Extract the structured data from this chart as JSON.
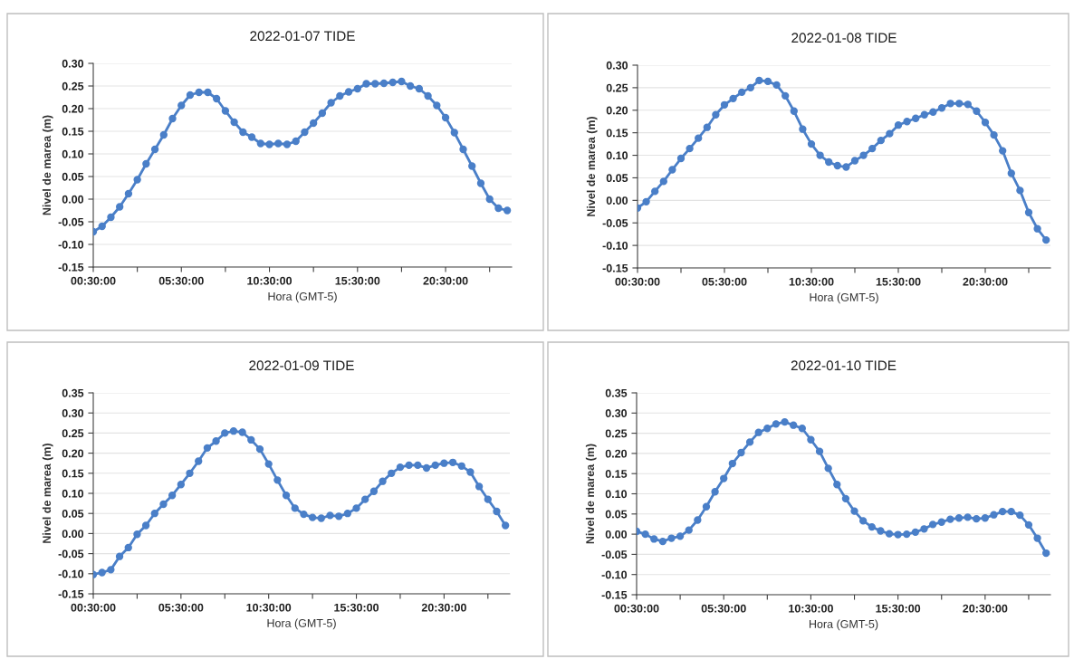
{
  "chart_data": [
    {
      "type": "line",
      "title": "2022-01-07 TIDE",
      "xlabel": "Hora (GMT-5)",
      "ylabel": "Nivel de marea (m)",
      "marker": "circle",
      "grid": "y",
      "x": [
        0.5,
        1,
        1.5,
        2,
        2.5,
        3,
        3.5,
        4,
        4.5,
        5,
        5.5,
        6,
        6.5,
        7,
        7.5,
        8,
        8.5,
        9,
        9.5,
        10,
        10.5,
        11,
        11.5,
        12,
        12.5,
        13,
        13.5,
        14,
        14.5,
        15,
        15.5,
        16,
        16.5,
        17,
        17.5,
        18,
        18.5,
        19,
        19.5,
        20,
        20.5,
        21,
        21.5,
        22,
        22.5,
        23,
        23.5,
        24
      ],
      "series": [
        {
          "color": "#4a7fc8",
          "values": [
            -0.072,
            -0.06,
            -0.04,
            -0.017,
            0.012,
            0.043,
            0.078,
            0.11,
            0.142,
            0.178,
            0.207,
            0.23,
            0.236,
            0.236,
            0.222,
            0.195,
            0.17,
            0.148,
            0.137,
            0.123,
            0.121,
            0.123,
            0.121,
            0.128,
            0.148,
            0.168,
            0.19,
            0.213,
            0.228,
            0.237,
            0.244,
            0.255,
            0.255,
            0.256,
            0.258,
            0.26,
            0.25,
            0.244,
            0.228,
            0.207,
            0.18,
            0.147,
            0.11,
            0.073,
            0.035,
            0.0,
            -0.02,
            -0.025
          ]
        }
      ],
      "xlim": [
        0.5,
        24.25
      ],
      "xticks": [
        {
          "value": 0.5,
          "label": "00:30:00"
        },
        {
          "value": 3,
          "label": null
        },
        {
          "value": 5.5,
          "label": "05:30:00"
        },
        {
          "value": 8,
          "label": null
        },
        {
          "value": 10.5,
          "label": "10:30:00"
        },
        {
          "value": 13,
          "label": null
        },
        {
          "value": 15.5,
          "label": "15:30:00"
        },
        {
          "value": 18,
          "label": null
        },
        {
          "value": 20.5,
          "label": "20:30:00"
        },
        {
          "value": 23,
          "label": null
        }
      ],
      "ylim": [
        -0.15,
        0.3
      ],
      "yticks": [
        {
          "value": -0.15,
          "label": "-0.15"
        },
        {
          "value": -0.1,
          "label": "-0.10"
        },
        {
          "value": -0.05,
          "label": "-0.05"
        },
        {
          "value": 0,
          "label": "0.00"
        },
        {
          "value": 0.05,
          "label": "0.05"
        },
        {
          "value": 0.1,
          "label": "0.10"
        },
        {
          "value": 0.15,
          "label": "0.15"
        },
        {
          "value": 0.2,
          "label": "0.20"
        },
        {
          "value": 0.25,
          "label": "0.25"
        },
        {
          "value": 0.3,
          "label": "0.30"
        }
      ]
    },
    {
      "type": "line",
      "title": "2022-01-08 TIDE",
      "xlabel": "Hora (GMT-5)",
      "ylabel": "Nivel de marea (m)",
      "marker": "circle",
      "grid": "y",
      "x": [
        0.5,
        1,
        1.5,
        2,
        2.5,
        3,
        3.5,
        4,
        4.5,
        5,
        5.5,
        6,
        6.5,
        7,
        7.5,
        8,
        8.5,
        9,
        9.5,
        10,
        10.5,
        11,
        11.5,
        12,
        12.5,
        13,
        13.5,
        14,
        14.5,
        15,
        15.5,
        16,
        16.5,
        17,
        17.5,
        18,
        18.5,
        19,
        19.5,
        20,
        20.5,
        21,
        21.5,
        22,
        22.5,
        23,
        23.5,
        24
      ],
      "series": [
        {
          "color": "#4a7fc8",
          "values": [
            -0.017,
            -0.003,
            0.02,
            0.042,
            0.068,
            0.093,
            0.115,
            0.138,
            0.162,
            0.19,
            0.212,
            0.226,
            0.24,
            0.25,
            0.266,
            0.264,
            0.256,
            0.232,
            0.198,
            0.158,
            0.125,
            0.1,
            0.085,
            0.077,
            0.074,
            0.088,
            0.1,
            0.115,
            0.133,
            0.148,
            0.167,
            0.175,
            0.182,
            0.19,
            0.196,
            0.205,
            0.215,
            0.215,
            0.213,
            0.198,
            0.173,
            0.145,
            0.11,
            0.06,
            0.022,
            -0.027,
            -0.063,
            -0.088
          ]
        }
      ],
      "xlim": [
        0.5,
        24.25
      ],
      "xticks": [
        {
          "value": 0.5,
          "label": "00:30:00"
        },
        {
          "value": 3,
          "label": null
        },
        {
          "value": 5.5,
          "label": "05:30:00"
        },
        {
          "value": 8,
          "label": null
        },
        {
          "value": 10.5,
          "label": "10:30:00"
        },
        {
          "value": 13,
          "label": null
        },
        {
          "value": 15.5,
          "label": "15:30:00"
        },
        {
          "value": 18,
          "label": null
        },
        {
          "value": 20.5,
          "label": "20:30:00"
        },
        {
          "value": 23,
          "label": null
        }
      ],
      "ylim": [
        -0.15,
        0.3
      ],
      "yticks": [
        {
          "value": -0.15,
          "label": "-0.15"
        },
        {
          "value": -0.1,
          "label": "-0.10"
        },
        {
          "value": -0.05,
          "label": "-0.05"
        },
        {
          "value": 0,
          "label": "0.00"
        },
        {
          "value": 0.05,
          "label": "0.05"
        },
        {
          "value": 0.1,
          "label": "0.10"
        },
        {
          "value": 0.15,
          "label": "0.15"
        },
        {
          "value": 0.2,
          "label": "0.20"
        },
        {
          "value": 0.25,
          "label": "0.25"
        },
        {
          "value": 0.3,
          "label": "0.30"
        }
      ]
    },
    {
      "type": "line",
      "title": "2022-01-09 TIDE",
      "xlabel": "Hora (GMT-5)",
      "ylabel": "Nivel de marea (m)",
      "marker": "circle",
      "grid": "y",
      "x": [
        0.5,
        1,
        1.5,
        2,
        2.5,
        3,
        3.5,
        4,
        4.5,
        5,
        5.5,
        6,
        6.5,
        7,
        7.5,
        8,
        8.5,
        9,
        9.5,
        10,
        10.5,
        11,
        11.5,
        12,
        12.5,
        13,
        13.5,
        14,
        14.5,
        15,
        15.5,
        16,
        16.5,
        17,
        17.5,
        18,
        18.5,
        19,
        19.5,
        20,
        20.5,
        21,
        21.5,
        22,
        22.5,
        23,
        23.5,
        24
      ],
      "series": [
        {
          "color": "#4a7fc8",
          "values": [
            -0.102,
            -0.097,
            -0.09,
            -0.057,
            -0.035,
            -0.002,
            0.02,
            0.05,
            0.073,
            0.095,
            0.122,
            0.15,
            0.18,
            0.213,
            0.23,
            0.25,
            0.255,
            0.252,
            0.233,
            0.21,
            0.173,
            0.133,
            0.095,
            0.063,
            0.048,
            0.04,
            0.038,
            0.045,
            0.043,
            0.05,
            0.063,
            0.085,
            0.105,
            0.13,
            0.15,
            0.165,
            0.17,
            0.17,
            0.163,
            0.17,
            0.175,
            0.177,
            0.168,
            0.153,
            0.117,
            0.085,
            0.055,
            0.02
          ]
        }
      ],
      "xlim": [
        0.5,
        24.25
      ],
      "xticks": [
        {
          "value": 0.5,
          "label": "00:30:00"
        },
        {
          "value": 3,
          "label": null
        },
        {
          "value": 5.5,
          "label": "05:30:00"
        },
        {
          "value": 8,
          "label": null
        },
        {
          "value": 10.5,
          "label": "10:30:00"
        },
        {
          "value": 13,
          "label": null
        },
        {
          "value": 15.5,
          "label": "15:30:00"
        },
        {
          "value": 18,
          "label": null
        },
        {
          "value": 20.5,
          "label": "20:30:00"
        },
        {
          "value": 23,
          "label": null
        }
      ],
      "ylim": [
        -0.15,
        0.35
      ],
      "yticks": [
        {
          "value": -0.15,
          "label": "-0.15"
        },
        {
          "value": -0.1,
          "label": "-0.10"
        },
        {
          "value": -0.05,
          "label": "-0.05"
        },
        {
          "value": 0,
          "label": "0.00"
        },
        {
          "value": 0.05,
          "label": "0.05"
        },
        {
          "value": 0.1,
          "label": "0.10"
        },
        {
          "value": 0.15,
          "label": "0.15"
        },
        {
          "value": 0.2,
          "label": "0.20"
        },
        {
          "value": 0.25,
          "label": "0.25"
        },
        {
          "value": 0.3,
          "label": "0.30"
        },
        {
          "value": 0.35,
          "label": "0.35"
        }
      ]
    },
    {
      "type": "line",
      "title": "2022-01-10 TIDE",
      "xlabel": "Hora (GMT-5)",
      "ylabel": "Nivel de marea (m)",
      "marker": "circle",
      "grid": "y",
      "x": [
        0.5,
        1,
        1.5,
        2,
        2.5,
        3,
        3.5,
        4,
        4.5,
        5,
        5.5,
        6,
        6.5,
        7,
        7.5,
        8,
        8.5,
        9,
        9.5,
        10,
        10.5,
        11,
        11.5,
        12,
        12.5,
        13,
        13.5,
        14,
        14.5,
        15,
        15.5,
        16,
        16.5,
        17,
        17.5,
        18,
        18.5,
        19,
        19.5,
        20,
        20.5,
        21,
        21.5,
        22,
        22.5,
        23,
        23.5,
        24
      ],
      "series": [
        {
          "color": "#4a7fc8",
          "values": [
            0.007,
            0.0,
            -0.012,
            -0.018,
            -0.01,
            -0.005,
            0.01,
            0.035,
            0.068,
            0.105,
            0.138,
            0.175,
            0.202,
            0.228,
            0.252,
            0.262,
            0.273,
            0.278,
            0.27,
            0.262,
            0.234,
            0.205,
            0.163,
            0.123,
            0.088,
            0.057,
            0.033,
            0.018,
            0.008,
            0.001,
            -0.001,
            0.0,
            0.005,
            0.013,
            0.024,
            0.03,
            0.037,
            0.04,
            0.042,
            0.038,
            0.04,
            0.048,
            0.056,
            0.056,
            0.047,
            0.023,
            -0.01,
            -0.047
          ]
        }
      ],
      "xlim": [
        0.5,
        24.25
      ],
      "xticks": [
        {
          "value": 0.5,
          "label": "00:30:00"
        },
        {
          "value": 3,
          "label": null
        },
        {
          "value": 5.5,
          "label": "05:30:00"
        },
        {
          "value": 8,
          "label": null
        },
        {
          "value": 10.5,
          "label": "10:30:00"
        },
        {
          "value": 13,
          "label": null
        },
        {
          "value": 15.5,
          "label": "15:30:00"
        },
        {
          "value": 18,
          "label": null
        },
        {
          "value": 20.5,
          "label": "20:30:00"
        },
        {
          "value": 23,
          "label": null
        }
      ],
      "ylim": [
        -0.15,
        0.35
      ],
      "yticks": [
        {
          "value": -0.15,
          "label": "-0.15"
        },
        {
          "value": -0.1,
          "label": "-0.10"
        },
        {
          "value": -0.05,
          "label": "-0.05"
        },
        {
          "value": 0,
          "label": "0.00"
        },
        {
          "value": 0.05,
          "label": "0.05"
        },
        {
          "value": 0.1,
          "label": "0.10"
        },
        {
          "value": 0.15,
          "label": "0.15"
        },
        {
          "value": 0.2,
          "label": "0.20"
        },
        {
          "value": 0.25,
          "label": "0.25"
        },
        {
          "value": 0.3,
          "label": "0.30"
        },
        {
          "value": 0.35,
          "label": "0.35"
        }
      ]
    }
  ]
}
